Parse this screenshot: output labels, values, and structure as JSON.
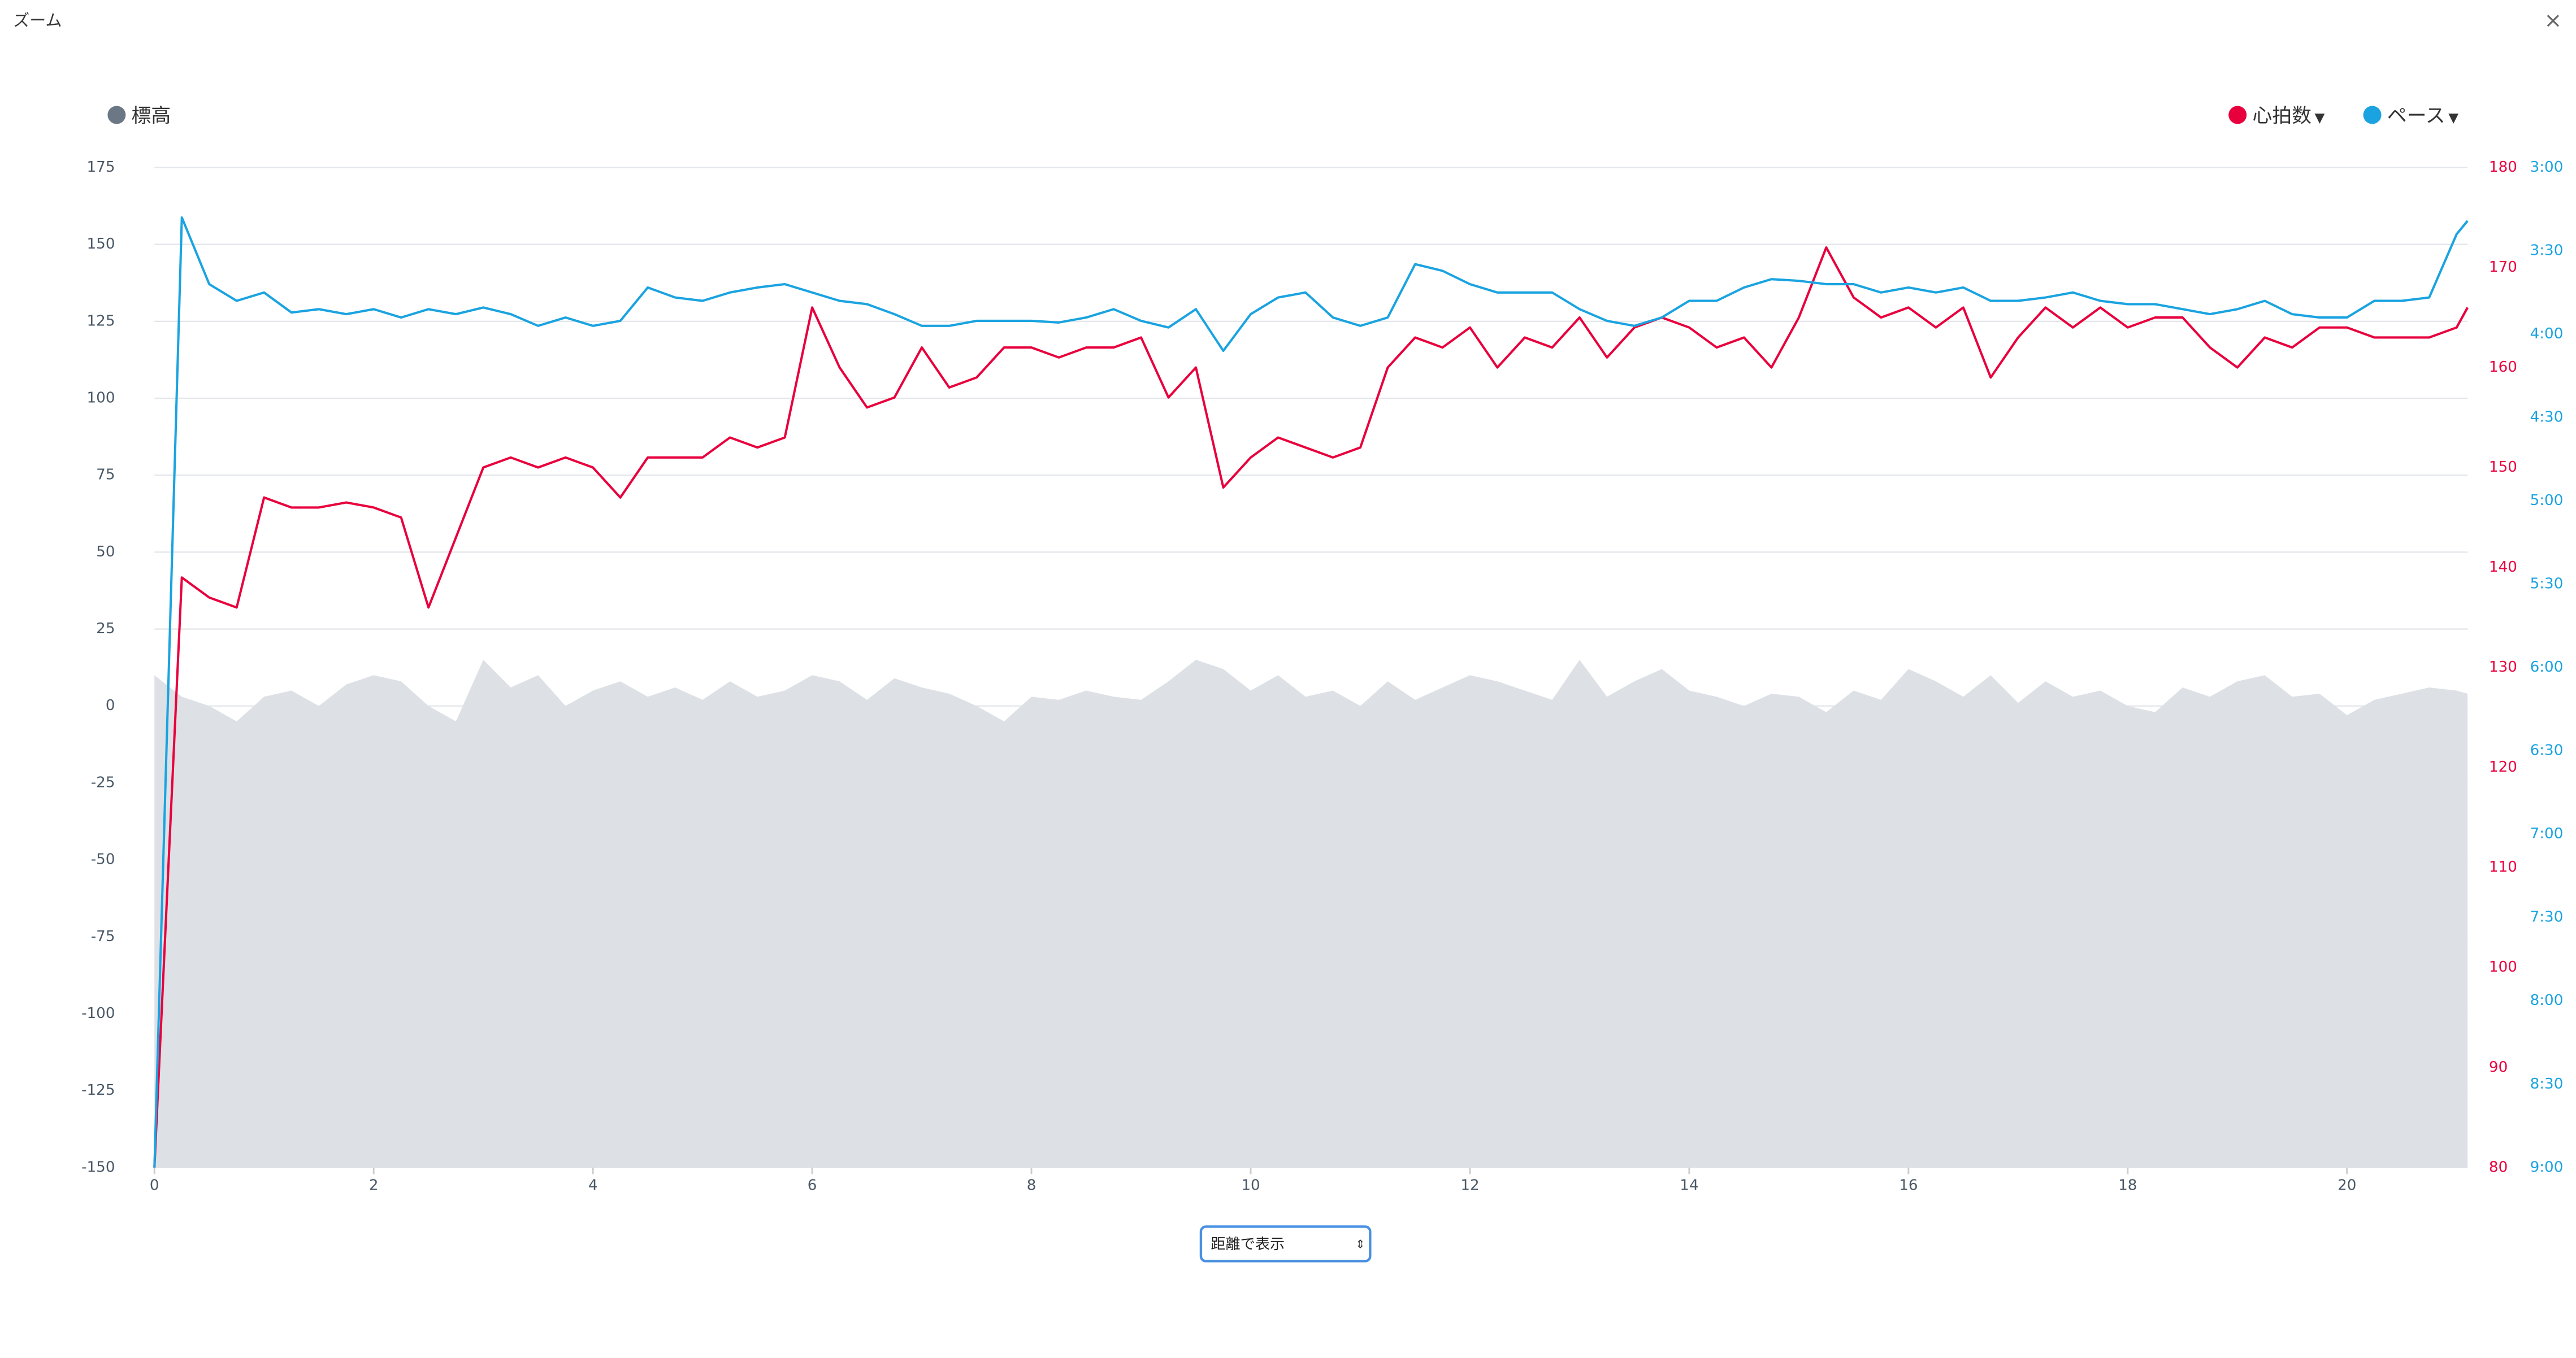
{
  "header": {
    "title": "ズーム",
    "close": "×"
  },
  "chart_data": {
    "type": "line",
    "x": [
      0,
      0.25,
      0.5,
      0.75,
      1,
      1.25,
      1.5,
      1.75,
      2,
      2.25,
      2.5,
      2.75,
      3,
      3.25,
      3.5,
      3.75,
      4,
      4.25,
      4.5,
      4.75,
      5,
      5.25,
      5.5,
      5.75,
      6,
      6.25,
      6.5,
      6.75,
      7,
      7.25,
      7.5,
      7.75,
      8,
      8.25,
      8.5,
      8.75,
      9,
      9.25,
      9.5,
      9.75,
      10,
      10.25,
      10.5,
      10.75,
      11,
      11.25,
      11.5,
      11.75,
      12,
      12.25,
      12.5,
      12.75,
      13,
      13.25,
      13.5,
      13.75,
      14,
      14.25,
      14.5,
      14.75,
      15,
      15.25,
      15.5,
      15.75,
      16,
      16.25,
      16.5,
      16.75,
      17,
      17.25,
      17.5,
      17.75,
      18,
      18.25,
      18.5,
      18.75,
      19,
      19.25,
      19.5,
      19.75,
      20,
      20.25,
      20.5,
      20.75,
      21,
      21.1
    ],
    "xlim": [
      0,
      21.1
    ],
    "xticks": [
      0,
      2,
      4,
      6,
      8,
      10,
      12,
      14,
      16,
      18,
      20
    ],
    "ylim": [
      -150,
      175
    ],
    "yticks": [
      -150,
      -125,
      -100,
      -75,
      -50,
      -25,
      0,
      25,
      50,
      75,
      100,
      125,
      150,
      175
    ],
    "y2lim": [
      80,
      180
    ],
    "y2ticks": [
      80,
      90,
      100,
      110,
      120,
      130,
      140,
      150,
      160,
      170,
      180
    ],
    "y3lim": [
      3,
      9
    ],
    "y3inverted": true,
    "y3ticks": [
      {
        "value": 3,
        "label": "3:00"
      },
      {
        "value": 3.5,
        "label": "3:30"
      },
      {
        "value": 4,
        "label": "4:00"
      },
      {
        "value": 4.5,
        "label": "4:30"
      },
      {
        "value": 5,
        "label": "5:00"
      },
      {
        "value": 5.5,
        "label": "5:30"
      },
      {
        "value": 6,
        "label": "6:00"
      },
      {
        "value": 6.5,
        "label": "6:30"
      },
      {
        "value": 7,
        "label": "7:00"
      },
      {
        "value": 7.5,
        "label": "7:30"
      },
      {
        "value": 8,
        "label": "8:00"
      },
      {
        "value": 8.5,
        "label": "8:30"
      },
      {
        "value": 9,
        "label": "9:00"
      }
    ],
    "grid": true,
    "series": [
      {
        "name": "標高",
        "color": "#6b7785",
        "fill": "#dde1e6",
        "style": "area",
        "axis": "y",
        "values": [
          10,
          3,
          0,
          -5,
          3,
          5,
          0,
          7,
          10,
          8,
          0,
          -5,
          15,
          6,
          10,
          0,
          5,
          8,
          3,
          6,
          2,
          8,
          3,
          5,
          10,
          8,
          2,
          9,
          6,
          4,
          0,
          -5,
          3,
          2,
          5,
          3,
          2,
          8,
          15,
          12,
          5,
          10,
          3,
          5,
          0,
          8,
          2,
          6,
          10,
          8,
          5,
          2,
          15,
          3,
          8,
          12,
          5,
          3,
          0,
          4,
          3,
          -2,
          5,
          2,
          12,
          8,
          3,
          10,
          1,
          8,
          3,
          5,
          0,
          -2,
          6,
          3,
          8,
          10,
          3,
          4,
          -3,
          2,
          4,
          6,
          5,
          4
        ]
      },
      {
        "name": "心拍数",
        "color": "#e8003d",
        "style": "line",
        "axis": "y2",
        "values": [
          80,
          139,
          137,
          136,
          147,
          146,
          146,
          146.5,
          146,
          145,
          136,
          143,
          150,
          151,
          150,
          151,
          150,
          147,
          151,
          151,
          151,
          153,
          152,
          153,
          166,
          160,
          156,
          157,
          162,
          158,
          159,
          162,
          162,
          161,
          162,
          162,
          163,
          157,
          160,
          148,
          151,
          153,
          152,
          151,
          152,
          160,
          163,
          162,
          164,
          160,
          163,
          162,
          165,
          161,
          164,
          165,
          164,
          162,
          163,
          160,
          165,
          172,
          167,
          165,
          166,
          164,
          166,
          159,
          163,
          166,
          164,
          166,
          164,
          165,
          165,
          162,
          160,
          163,
          162,
          164,
          164,
          163,
          163,
          163,
          164,
          166
        ]
      },
      {
        "name": "ペース",
        "color": "#1aa3e0",
        "style": "line",
        "axis": "y3",
        "values": [
          9,
          3.3,
          3.7,
          3.8,
          3.75,
          3.87,
          3.85,
          3.88,
          3.85,
          3.9,
          3.85,
          3.88,
          3.84,
          3.88,
          3.95,
          3.9,
          3.95,
          3.92,
          3.72,
          3.78,
          3.8,
          3.75,
          3.72,
          3.7,
          3.75,
          3.8,
          3.82,
          3.88,
          3.95,
          3.95,
          3.92,
          3.92,
          3.92,
          3.93,
          3.9,
          3.85,
          3.92,
          3.96,
          3.85,
          4.1,
          3.88,
          3.78,
          3.75,
          3.9,
          3.95,
          3.9,
          3.58,
          3.62,
          3.7,
          3.75,
          3.75,
          3.75,
          3.85,
          3.92,
          3.95,
          3.9,
          3.8,
          3.8,
          3.72,
          3.67,
          3.68,
          3.7,
          3.7,
          3.75,
          3.72,
          3.75,
          3.72,
          3.8,
          3.8,
          3.78,
          3.75,
          3.8,
          3.82,
          3.82,
          3.85,
          3.88,
          3.85,
          3.8,
          3.88,
          3.9,
          3.9,
          3.8,
          3.8,
          3.78,
          3.4,
          3.32
        ]
      }
    ]
  },
  "controls": {
    "select": "距離で表示"
  }
}
